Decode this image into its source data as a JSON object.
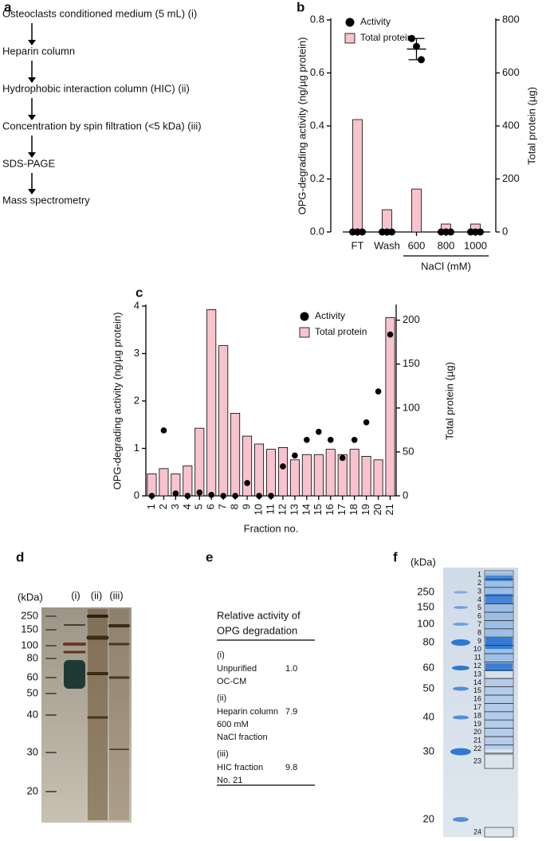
{
  "panel_labels": [
    "a",
    "b",
    "c",
    "d",
    "e",
    "f"
  ],
  "workflow": {
    "steps": [
      "Osteoclasts conditioned medium (5 mL) (i)",
      "Heparin column",
      "Hydrophobic interaction column (HIC) (ii)",
      "Concentration by spin filtration (<5 kDa) (iii)",
      "SDS-PAGE",
      "Mass spectrometry"
    ]
  },
  "chart_data": [
    {
      "type": "combo",
      "categories": [
        "FT",
        "Wash",
        "600",
        "800",
        "1000"
      ],
      "group_label": "NaCl (mM)",
      "ylabel": "OPG-degrading activity (ng/µg protein)",
      "y2label": "Total protein (µg)",
      "ylim": [
        0,
        0.8
      ],
      "yticks": [
        {
          "value": 0,
          "label": "0.0"
        },
        0.2,
        0.4,
        0.6,
        0.8
      ],
      "y2lim": [
        0,
        800
      ],
      "y2ticks": [
        0,
        200,
        400,
        600,
        800
      ],
      "series": [
        {
          "name": "Activity",
          "type": "dot",
          "color": "#000000",
          "values": [
            0,
            0,
            0.69,
            0,
            0
          ],
          "errors": [
            0,
            0,
            0.04,
            0,
            0
          ],
          "replicates": [
            [
              0,
              0,
              0
            ],
            [
              0,
              0,
              0
            ],
            [
              0.73,
              0.7,
              0.65
            ],
            [
              0,
              0,
              0
            ],
            [
              0,
              0,
              0
            ]
          ]
        },
        {
          "name": "Total protein",
          "type": "bar",
          "axis": "y2",
          "color": "#f8c3cc",
          "values": [
            424,
            84,
            162,
            30,
            30
          ]
        }
      ]
    },
    {
      "type": "combo",
      "categories": [
        "1",
        "2",
        "3",
        "4",
        "5",
        "6",
        "7",
        "8",
        "9",
        "10",
        "11",
        "12",
        "13",
        "14",
        "15",
        "16",
        "17",
        "18",
        "19",
        "20",
        "21"
      ],
      "xlabel": "Fraction no.",
      "ylabel": "OPG-degrading activity (ng/µg protein)",
      "y2label": "Total protein (µg)",
      "ylim": [
        0,
        4
      ],
      "yticks": [
        0,
        1,
        2,
        3,
        4
      ],
      "y2lim": [
        0,
        216
      ],
      "y2ticks": [
        0,
        50,
        100,
        150,
        200
      ],
      "series": [
        {
          "name": "Activity",
          "type": "line",
          "color": "#000000",
          "values": [
            0,
            1.38,
            0.05,
            0,
            0.07,
            0.02,
            0,
            0,
            0.27,
            0,
            0,
            0.62,
            0.85,
            1.18,
            1.35,
            1.18,
            0.8,
            1.18,
            1.55,
            2.2,
            3.4
          ]
        },
        {
          "name": "Total protein",
          "type": "bar",
          "axis": "y2",
          "color": "#f8c3cc",
          "values": [
            25,
            31,
            25,
            34,
            77,
            212,
            171,
            94,
            68,
            59,
            53,
            55,
            41,
            47,
            47,
            53,
            47,
            53,
            45,
            41,
            203
          ]
        }
      ]
    }
  ],
  "gel_d": {
    "unit": "(kDa)",
    "markers": [
      250,
      150,
      100,
      80,
      60,
      50,
      40,
      30,
      20
    ],
    "lanes": [
      "(i)",
      "(ii)",
      "(iii)"
    ]
  },
  "table_e": {
    "header": [
      "Relative activity of",
      "OPG degradation"
    ],
    "rows": [
      {
        "label": "(i)",
        "description": [
          "Unpurified",
          "OC-CM"
        ],
        "value": "1.0"
      },
      {
        "label": "(ii)",
        "description": [
          "Heparin column",
          "600 mM",
          "NaCl fraction"
        ],
        "value": "7.9"
      },
      {
        "label": "(iii)",
        "description": [
          "HIC fraction",
          "No. 21"
        ],
        "value": "9.8"
      }
    ]
  },
  "gel_f": {
    "unit": "(kDa)",
    "markers": [
      250,
      150,
      100,
      80,
      60,
      50,
      40,
      30,
      20
    ],
    "slices": [
      1,
      2,
      3,
      4,
      5,
      6,
      7,
      8,
      9,
      10,
      11,
      12,
      13,
      14,
      15,
      16,
      17,
      18,
      19,
      20,
      21,
      22,
      23,
      24
    ]
  }
}
